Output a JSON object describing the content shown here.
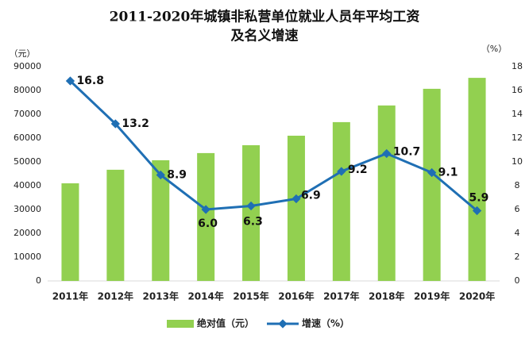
{
  "chart_data": {
    "type": "bar_line",
    "title_lines": [
      "2011-2020年城镇非私营单位就业人员年平均工资",
      "及名义增速"
    ],
    "y_label": "（元）",
    "y2_label": "（%）",
    "categories": [
      "2011年",
      "2012年",
      "2013年",
      "2014年",
      "2015年",
      "2016年",
      "2017年",
      "2018年",
      "2019年",
      "2020年"
    ],
    "series": [
      {
        "name": "绝对值（元）",
        "type": "bar",
        "color": "#92d050",
        "values": [
          41000,
          46700,
          50700,
          53700,
          57000,
          61000,
          66700,
          73700,
          80700,
          85300
        ]
      },
      {
        "name": "增速（%）",
        "type": "line",
        "axis": "y2",
        "color": "#1f6fb4",
        "values": [
          16.8,
          13.2,
          8.9,
          6.0,
          6.3,
          6.9,
          9.2,
          10.7,
          9.1,
          5.9
        ],
        "value_labels": [
          "16.8",
          "13.2",
          "8.9",
          "6.0",
          "6.3",
          "6.9",
          "9.2",
          "10.7",
          "9.1",
          "5.9"
        ]
      }
    ],
    "ylim": [
      0,
      90000
    ],
    "yticks": [
      0,
      10000,
      20000,
      30000,
      40000,
      50000,
      60000,
      70000,
      80000,
      90000
    ],
    "y2lim": [
      0,
      18
    ],
    "y2ticks": [
      0,
      2,
      4,
      6,
      8,
      10,
      12,
      14,
      16,
      18
    ],
    "legend": "bottom"
  }
}
